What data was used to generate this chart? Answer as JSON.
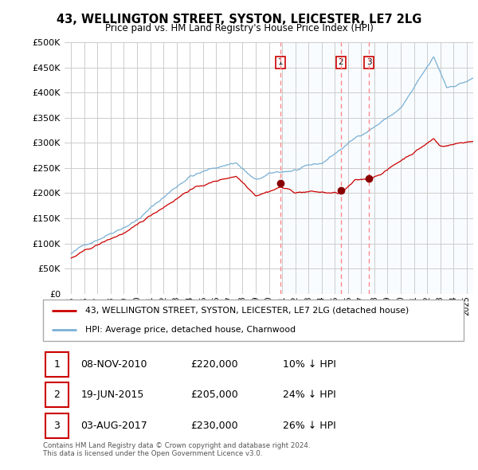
{
  "title": "43, WELLINGTON STREET, SYSTON, LEICESTER, LE7 2LG",
  "subtitle": "Price paid vs. HM Land Registry's House Price Index (HPI)",
  "background_color": "#ffffff",
  "grid_color": "#cccccc",
  "hpi_color": "#7ab0d4",
  "price_color": "#cc0000",
  "vline_color": "#ff8888",
  "shade_color": "#ddeeff",
  "sales": [
    {
      "date_num": 2010.86,
      "price": 220000,
      "label": "1"
    },
    {
      "date_num": 2015.47,
      "price": 205000,
      "label": "2"
    },
    {
      "date_num": 2017.59,
      "price": 230000,
      "label": "3"
    }
  ],
  "sale_table": [
    {
      "num": "1",
      "date": "08-NOV-2010",
      "price": "£220,000",
      "hpi": "10% ↓ HPI"
    },
    {
      "num": "2",
      "date": "19-JUN-2015",
      "price": "£205,000",
      "hpi": "24% ↓ HPI"
    },
    {
      "num": "3",
      "date": "03-AUG-2017",
      "price": "£230,000",
      "hpi": "26% ↓ HPI"
    }
  ],
  "legend_line1": "43, WELLINGTON STREET, SYSTON, LEICESTER, LE7 2LG (detached house)",
  "legend_line2": "HPI: Average price, detached house, Charnwood",
  "footnote": "Contains HM Land Registry data © Crown copyright and database right 2024.\nThis data is licensed under the Open Government Licence v3.0.",
  "ylim": [
    0,
    500000
  ],
  "yticks": [
    0,
    50000,
    100000,
    150000,
    200000,
    250000,
    300000,
    350000,
    400000,
    450000,
    500000
  ],
  "xmin": 1994.5,
  "xmax": 2025.5
}
